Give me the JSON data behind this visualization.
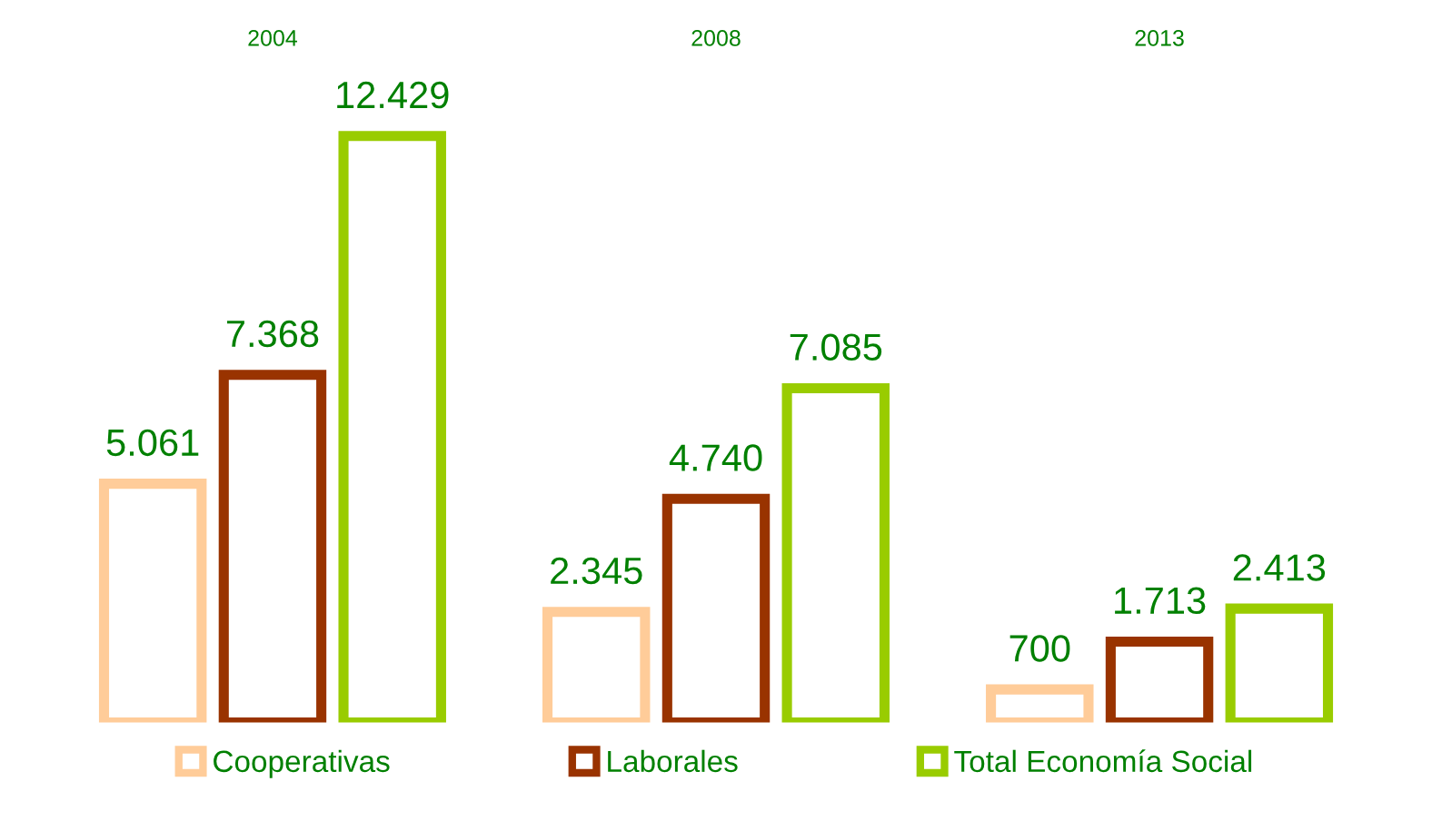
{
  "chart_data": {
    "type": "bar",
    "categories": [
      "2004",
      "2008",
      "2013"
    ],
    "series": [
      {
        "name": "Cooperativas",
        "color": "#ffcc99",
        "values": [
          5061,
          2345,
          700
        ],
        "value_labels": [
          "5.061",
          "2.345",
          "700"
        ]
      },
      {
        "name": "Laborales",
        "color": "#993300",
        "values": [
          7368,
          4740,
          1713
        ],
        "value_labels": [
          "7.368",
          "4.740",
          "1.713"
        ]
      },
      {
        "name": "Total Economía Social",
        "color": "#99cc00",
        "values": [
          12429,
          7085,
          2413
        ],
        "value_labels": [
          "12.429",
          "7.085",
          "2.413"
        ]
      }
    ],
    "legend": "bottom",
    "grid": false
  }
}
